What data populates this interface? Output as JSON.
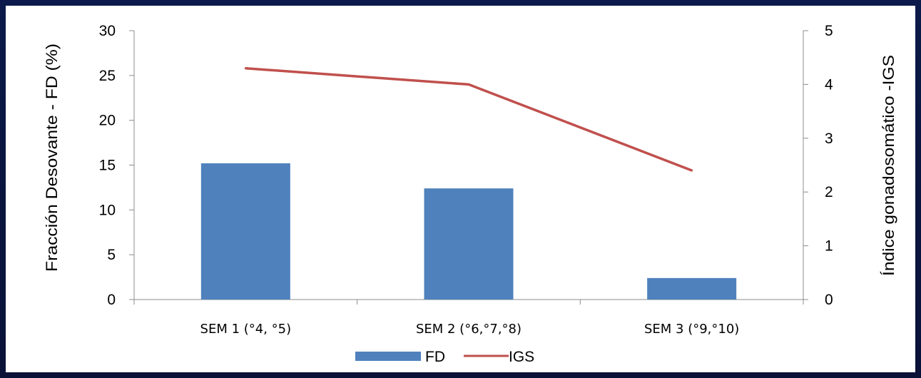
{
  "chart_data": {
    "type": "bar",
    "categories": [
      "SEM 1 (°4, °5)",
      "SEM 2 (°6,°7,°8)",
      "SEM 3 (°9,°10)"
    ],
    "series": [
      {
        "name": "FD",
        "type": "bar",
        "axis": "left",
        "values": [
          15.2,
          12.4,
          2.4
        ],
        "color": "#4f81bd"
      },
      {
        "name": "IGS",
        "type": "line",
        "axis": "right",
        "values": [
          4.3,
          4.0,
          2.4
        ],
        "color": "#c0504d"
      }
    ],
    "ylabel": "Fracción Desovante - FD (%)",
    "y2label": "Índice gonadosomático -IGS",
    "ylim": [
      0,
      30
    ],
    "y2lim": [
      0,
      5
    ],
    "yticks": [
      "0",
      "5",
      "10",
      "15",
      "20",
      "25",
      "30"
    ],
    "y2ticks": [
      "0",
      "1",
      "2",
      "3",
      "4",
      "5"
    ],
    "grid": false,
    "legend_position": "bottom"
  }
}
